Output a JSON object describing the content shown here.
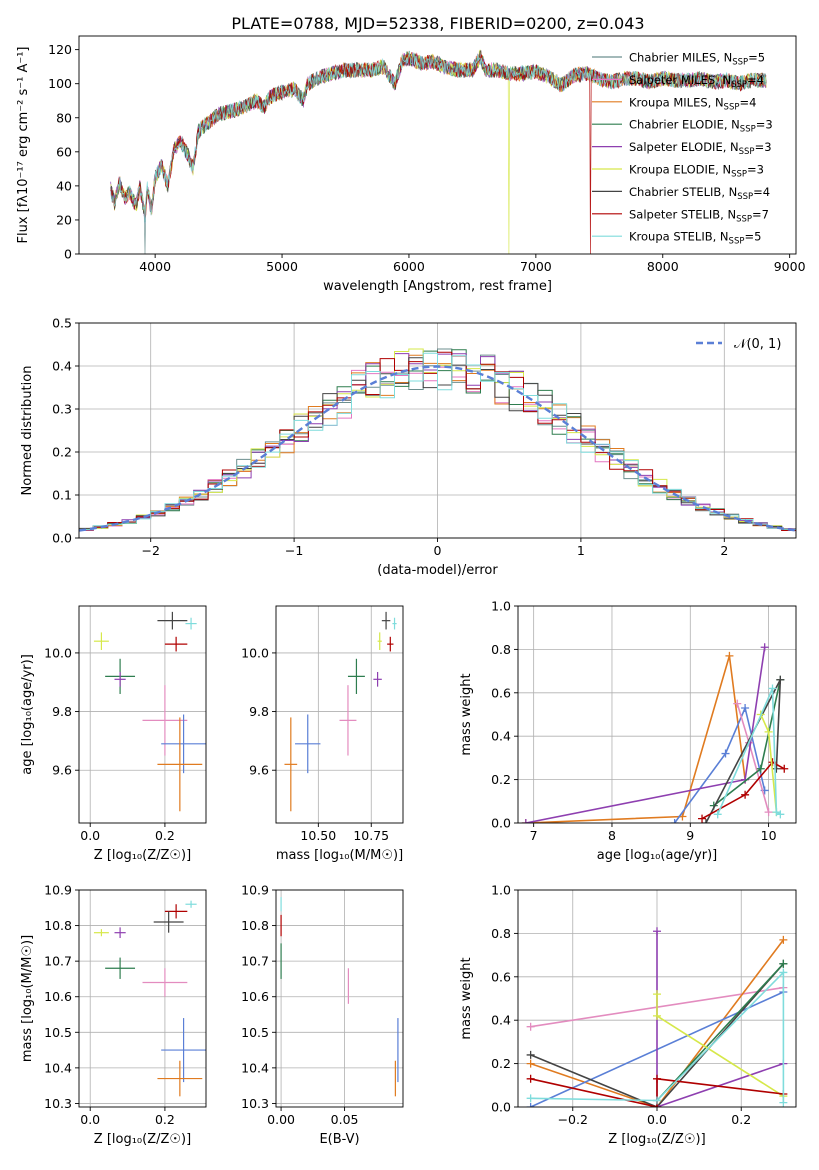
{
  "figure": {
    "title": "PLATE=0788, MJD=52338, FIBERID=0200, z=0.043"
  },
  "colors": {
    "Chabrier MILES": "#6c8f8f",
    "Salpeter MILES": "#e377c2",
    "Kroupa MILES": "#e07b20",
    "Chabrier ELODIE": "#2e7d4f",
    "Salpeter ELODIE": "#8e3fb0",
    "Kroupa ELODIE": "#d6e84a",
    "Chabrier STELIB": "#444444",
    "Salpeter STELIB": "#b00000",
    "Kroupa STELIB": "#7fdcdc",
    "blue": "#5a7fd6",
    "pink": "#e38cbf"
  },
  "chart_data": [
    {
      "id": "spectrum",
      "type": "line",
      "xlabel": "wavelength [Angstrom, rest frame]",
      "ylabel": "Flux [fλ10⁻¹⁷ erg cm⁻² s⁻¹ A⁻¹]",
      "xlim": [
        3400,
        9050
      ],
      "ylim": [
        0,
        128
      ],
      "xticks": [
        4000,
        5000,
        6000,
        7000,
        8000,
        9000
      ],
      "yticks": [
        0,
        20,
        40,
        60,
        80,
        100,
        120
      ],
      "legend_position": "top-right",
      "legend": [
        {
          "label": "Chabrier MILES, N",
          "sub": "SSP",
          "tail": "=5",
          "color": "#6c8f8f"
        },
        {
          "label": "Salpeter MILES, N",
          "sub": "SSP",
          "tail": "=4",
          "color": "#e377c2"
        },
        {
          "label": "Kroupa MILES, N",
          "sub": "SSP",
          "tail": "=4",
          "color": "#e07b20"
        },
        {
          "label": "Chabrier ELODIE, N",
          "sub": "SSP",
          "tail": "=3",
          "color": "#2e7d4f"
        },
        {
          "label": "Salpeter ELODIE, N",
          "sub": "SSP",
          "tail": "=3",
          "color": "#8e3fb0"
        },
        {
          "label": "Kroupa ELODIE, N",
          "sub": "SSP",
          "tail": "=3",
          "color": "#d6e84a"
        },
        {
          "label": "Chabrier STELIB, N",
          "sub": "SSP",
          "tail": "=4",
          "color": "#444444"
        },
        {
          "label": "Salpeter STELIB, N",
          "sub": "SSP",
          "tail": "=7",
          "color": "#b00000"
        },
        {
          "label": "Kroupa STELIB, N",
          "sub": "SSP",
          "tail": "=5",
          "color": "#7fdcdc"
        }
      ],
      "spectrum_points": [
        [
          3650,
          38
        ],
        [
          3680,
          30
        ],
        [
          3720,
          42
        ],
        [
          3760,
          33
        ],
        [
          3800,
          36
        ],
        [
          3850,
          28
        ],
        [
          3880,
          40
        ],
        [
          3920,
          22
        ],
        [
          3940,
          40
        ],
        [
          3970,
          25
        ],
        [
          4000,
          45
        ],
        [
          4050,
          52
        ],
        [
          4100,
          40
        ],
        [
          4150,
          62
        ],
        [
          4200,
          66
        ],
        [
          4260,
          58
        ],
        [
          4300,
          50
        ],
        [
          4340,
          72
        ],
        [
          4400,
          76
        ],
        [
          4500,
          82
        ],
        [
          4600,
          84
        ],
        [
          4700,
          86
        ],
        [
          4800,
          90
        ],
        [
          4860,
          86
        ],
        [
          4900,
          92
        ],
        [
          5000,
          95
        ],
        [
          5100,
          97
        ],
        [
          5170,
          90
        ],
        [
          5200,
          100
        ],
        [
          5300,
          104
        ],
        [
          5400,
          106
        ],
        [
          5500,
          108
        ],
        [
          5600,
          108
        ],
        [
          5700,
          108
        ],
        [
          5800,
          110
        ],
        [
          5890,
          100
        ],
        [
          5950,
          114
        ],
        [
          6000,
          115
        ],
        [
          6100,
          112
        ],
        [
          6200,
          113
        ],
        [
          6300,
          109
        ],
        [
          6400,
          108
        ],
        [
          6500,
          108
        ],
        [
          6563,
          116
        ],
        [
          6600,
          108
        ],
        [
          6700,
          108
        ],
        [
          6800,
          106
        ],
        [
          6900,
          106
        ],
        [
          7000,
          107
        ],
        [
          7100,
          104
        ],
        [
          7200,
          99
        ],
        [
          7300,
          105
        ],
        [
          7400,
          106
        ],
        [
          7500,
          103
        ],
        [
          7600,
          101
        ],
        [
          7700,
          103
        ],
        [
          7800,
          103
        ],
        [
          7900,
          101
        ],
        [
          8000,
          103
        ],
        [
          8100,
          102
        ],
        [
          8200,
          102
        ],
        [
          8300,
          103
        ],
        [
          8400,
          101
        ],
        [
          8500,
          102
        ],
        [
          8600,
          100
        ],
        [
          8700,
          102
        ],
        [
          8800,
          102
        ]
      ],
      "dropouts": [
        {
          "series": "Kroupa ELODIE",
          "x": 6790
        },
        {
          "series": "Salpeter STELIB",
          "x": 7430
        },
        {
          "series": "Chabrier MILES",
          "x": 3920
        }
      ]
    },
    {
      "id": "residuals",
      "type": "line",
      "xlabel": "(data-model)/error",
      "ylabel": "Normed distribution",
      "xlim": [
        -2.5,
        2.5
      ],
      "ylim": [
        0,
        0.5
      ],
      "xticks": [
        -2,
        -1,
        0,
        1,
        2
      ],
      "yticks": [
        0.0,
        0.1,
        0.2,
        0.3,
        0.4,
        0.5
      ],
      "legend_position": "top-right",
      "legend_label": "𝒩(0, 1)",
      "reference": "normal(0,1)",
      "bin_width": 0.1
    },
    {
      "id": "age-vs-Z",
      "type": "scatter",
      "xlabel": "Z [log₁₀(Z/Z☉)]",
      "ylabel": "age  [log₁₀(age/yr)]",
      "xlim": [
        -0.03,
        0.31
      ],
      "ylim": [
        9.42,
        10.16
      ],
      "xticks": [
        0.0,
        0.2
      ],
      "yticks": [
        9.6,
        9.8,
        10.0
      ],
      "points": [
        {
          "color": "#d6e84a",
          "x": 0.03,
          "y": 10.04,
          "xe": 0.02,
          "ye": 0.03
        },
        {
          "color": "#444444",
          "x": 0.22,
          "y": 10.11,
          "xe": 0.04,
          "ye": 0.03
        },
        {
          "color": "#7fdcdc",
          "x": 0.27,
          "y": 10.1,
          "xe": 0.015,
          "ye": 0.02
        },
        {
          "color": "#b00000",
          "x": 0.23,
          "y": 10.03,
          "xe": 0.03,
          "ye": 0.025
        },
        {
          "color": "#2e7d4f",
          "x": 0.08,
          "y": 9.92,
          "xe": 0.04,
          "ye": 0.06
        },
        {
          "color": "#8e3fb0",
          "x": 0.08,
          "y": 9.91,
          "xe": 0.015,
          "ye": 0.025
        },
        {
          "color": "#e38cbf",
          "x": 0.2,
          "y": 9.77,
          "xe": 0.06,
          "ye": 0.12
        },
        {
          "color": "#5a7fd6",
          "x": 0.25,
          "y": 9.69,
          "xe": 0.06,
          "ye": 0.1
        },
        {
          "color": "#e07b20",
          "x": 0.24,
          "y": 9.62,
          "xe": 0.06,
          "ye": 0.16
        }
      ]
    },
    {
      "id": "age-vs-mass",
      "type": "scatter",
      "xlabel": "mass [log₁₀(M/M☉)]",
      "ylabel": "",
      "xlim": [
        10.3,
        10.9
      ],
      "ylim": [
        9.42,
        10.16
      ],
      "xticks": [
        10.5,
        10.75
      ],
      "yticks": [
        9.6,
        9.8,
        10.0
      ],
      "points": [
        {
          "color": "#444444",
          "x": 10.82,
          "y": 10.11,
          "xe": 0.02,
          "ye": 0.03
        },
        {
          "color": "#7fdcdc",
          "x": 10.86,
          "y": 10.1,
          "xe": 0.01,
          "ye": 0.02
        },
        {
          "color": "#d6e84a",
          "x": 10.79,
          "y": 10.04,
          "xe": 0.01,
          "ye": 0.03
        },
        {
          "color": "#b00000",
          "x": 10.84,
          "y": 10.03,
          "xe": 0.015,
          "ye": 0.025
        },
        {
          "color": "#2e7d4f",
          "x": 10.68,
          "y": 9.92,
          "xe": 0.04,
          "ye": 0.06
        },
        {
          "color": "#8e3fb0",
          "x": 10.78,
          "y": 9.91,
          "xe": 0.02,
          "ye": 0.025
        },
        {
          "color": "#e38cbf",
          "x": 10.64,
          "y": 9.77,
          "xe": 0.04,
          "ye": 0.12
        },
        {
          "color": "#5a7fd6",
          "x": 10.45,
          "y": 9.69,
          "xe": 0.06,
          "ye": 0.1
        },
        {
          "color": "#e07b20",
          "x": 10.37,
          "y": 9.62,
          "xe": 0.03,
          "ye": 0.16
        }
      ]
    },
    {
      "id": "weight-vs-age",
      "type": "line",
      "xlabel": "age  [log₁₀(age/yr)]",
      "ylabel": "mass weight",
      "xlim": [
        6.8,
        10.35
      ],
      "ylim": [
        0,
        1
      ],
      "xticks": [
        7,
        8,
        9,
        10
      ],
      "yticks": [
        0.0,
        0.2,
        0.4,
        0.6,
        0.8,
        1.0
      ],
      "series": [
        {
          "color": "#e07b20",
          "points": [
            [
              6.9,
              0.0
            ],
            [
              8.9,
              0.03
            ],
            [
              9.5,
              0.77
            ],
            [
              9.7,
              0.2
            ]
          ]
        },
        {
          "color": "#5a7fd6",
          "points": [
            [
              8.8,
              0.0
            ],
            [
              9.45,
              0.32
            ],
            [
              9.7,
              0.53
            ],
            [
              9.95,
              0.15
            ]
          ]
        },
        {
          "color": "#e38cbf",
          "points": [
            [
              9.6,
              0.55
            ],
            [
              9.75,
              0.37
            ],
            [
              10.0,
              0.05
            ]
          ]
        },
        {
          "color": "#8e3fb0",
          "points": [
            [
              6.9,
              0.0
            ],
            [
              9.7,
              0.2
            ],
            [
              9.95,
              0.81
            ]
          ]
        },
        {
          "color": "#2e7d4f",
          "points": [
            [
              9.3,
              0.08
            ],
            [
              9.9,
              0.25
            ],
            [
              10.15,
              0.66
            ]
          ]
        },
        {
          "color": "#444444",
          "points": [
            [
              9.2,
              0.0
            ],
            [
              10.15,
              0.66
            ],
            [
              10.1,
              0.25
            ]
          ]
        },
        {
          "color": "#b00000",
          "points": [
            [
              9.15,
              0.02
            ],
            [
              9.7,
              0.13
            ],
            [
              10.05,
              0.28
            ],
            [
              10.2,
              0.25
            ]
          ]
        },
        {
          "color": "#d6e84a",
          "points": [
            [
              9.9,
              0.5
            ],
            [
              10.0,
              0.42
            ],
            [
              10.1,
              0.05
            ]
          ]
        },
        {
          "color": "#7fdcdc",
          "points": [
            [
              9.35,
              0.04
            ],
            [
              10.05,
              0.62
            ],
            [
              10.1,
              0.05
            ],
            [
              10.15,
              0.04
            ]
          ]
        }
      ]
    },
    {
      "id": "mass-vs-Z",
      "type": "scatter",
      "xlabel": "Z [log₁₀(Z/Z☉)]",
      "ylabel": "mass [log₁₀(M/M☉)]",
      "xlim": [
        -0.03,
        0.31
      ],
      "ylim": [
        10.29,
        10.9
      ],
      "xticks": [
        0.0,
        0.2
      ],
      "yticks": [
        10.3,
        10.4,
        10.5,
        10.6,
        10.7,
        10.8,
        10.9
      ],
      "points": [
        {
          "color": "#7fdcdc",
          "x": 0.27,
          "y": 10.86,
          "xe": 0.015,
          "ye": 0.01
        },
        {
          "color": "#b00000",
          "x": 0.23,
          "y": 10.84,
          "xe": 0.03,
          "ye": 0.02
        },
        {
          "color": "#444444",
          "x": 0.21,
          "y": 10.81,
          "xe": 0.04,
          "ye": 0.03
        },
        {
          "color": "#8e3fb0",
          "x": 0.08,
          "y": 10.78,
          "xe": 0.015,
          "ye": 0.015
        },
        {
          "color": "#d6e84a",
          "x": 0.03,
          "y": 10.78,
          "xe": 0.02,
          "ye": 0.01
        },
        {
          "color": "#2e7d4f",
          "x": 0.08,
          "y": 10.68,
          "xe": 0.04,
          "ye": 0.03
        },
        {
          "color": "#e38cbf",
          "x": 0.2,
          "y": 10.64,
          "xe": 0.06,
          "ye": 0.04
        },
        {
          "color": "#5a7fd6",
          "x": 0.25,
          "y": 10.45,
          "xe": 0.06,
          "ye": 0.09
        },
        {
          "color": "#e07b20",
          "x": 0.24,
          "y": 10.37,
          "xe": 0.06,
          "ye": 0.05
        }
      ]
    },
    {
      "id": "mass-vs-EBV",
      "type": "scatter",
      "xlabel": "E(B-V)",
      "ylabel": "",
      "xlim": [
        -0.004,
        0.096
      ],
      "ylim": [
        10.29,
        10.9
      ],
      "xticks": [
        0.0,
        0.05
      ],
      "yticks": [
        10.3,
        10.4,
        10.5,
        10.6,
        10.7,
        10.8,
        10.9
      ],
      "points": [
        {
          "color": "#7fdcdc",
          "x": 0.0,
          "y": 10.86,
          "xe": 0,
          "ye": 0.02
        },
        {
          "color": "#b00000",
          "x": 0.0,
          "y": 10.8,
          "xe": 0,
          "ye": 0.03
        },
        {
          "color": "#2e7d4f",
          "x": 0.0,
          "y": 10.7,
          "xe": 0,
          "ye": 0.05
        },
        {
          "color": "#e38cbf",
          "x": 0.053,
          "y": 10.63,
          "xe": 0,
          "ye": 0.05
        },
        {
          "color": "#5a7fd6",
          "x": 0.092,
          "y": 10.45,
          "xe": 0,
          "ye": 0.09
        },
        {
          "color": "#e07b20",
          "x": 0.09,
          "y": 10.37,
          "xe": 0,
          "ye": 0.05
        }
      ]
    },
    {
      "id": "weight-vs-Z",
      "type": "line",
      "xlabel": "Z [log₁₀(Z/Z☉)]",
      "ylabel": "mass weight",
      "xlim": [
        -0.33,
        0.33
      ],
      "ylim": [
        0,
        1
      ],
      "xticks": [
        -0.2,
        0.0,
        0.2
      ],
      "yticks": [
        0.0,
        0.2,
        0.4,
        0.6,
        0.8,
        1.0
      ],
      "series": [
        {
          "color": "#e38cbf",
          "points": [
            [
              -0.3,
              0.37
            ],
            [
              0.3,
              0.55
            ]
          ]
        },
        {
          "color": "#e07b20",
          "points": [
            [
              -0.3,
              0.2
            ],
            [
              0.0,
              0.0
            ],
            [
              0.3,
              0.77
            ]
          ]
        },
        {
          "color": "#5a7fd6",
          "points": [
            [
              -0.3,
              0.0
            ],
            [
              0.3,
              0.53
            ]
          ]
        },
        {
          "color": "#444444",
          "points": [
            [
              -0.3,
              0.24
            ],
            [
              0.0,
              0.0
            ],
            [
              0.3,
              0.66
            ]
          ]
        },
        {
          "color": "#2e7d4f",
          "points": [
            [
              0.0,
              0.03
            ],
            [
              0.3,
              0.66
            ]
          ]
        },
        {
          "color": "#8e3fb0",
          "points": [
            [
              0.0,
              0.81
            ],
            [
              0.0,
              0.0
            ],
            [
              0.3,
              0.2
            ]
          ]
        },
        {
          "color": "#d6e84a",
          "points": [
            [
              0.0,
              0.52
            ],
            [
              0.0,
              0.42
            ],
            [
              0.3,
              0.05
            ]
          ]
        },
        {
          "color": "#b00000",
          "points": [
            [
              -0.3,
              0.13
            ],
            [
              0.0,
              0.0
            ],
            [
              0.0,
              0.13
            ],
            [
              0.3,
              0.06
            ]
          ]
        },
        {
          "color": "#7fdcdc",
          "points": [
            [
              -0.3,
              0.04
            ],
            [
              0.0,
              0.03
            ],
            [
              0.3,
              0.62
            ],
            [
              0.3,
              0.02
            ]
          ]
        }
      ]
    }
  ]
}
